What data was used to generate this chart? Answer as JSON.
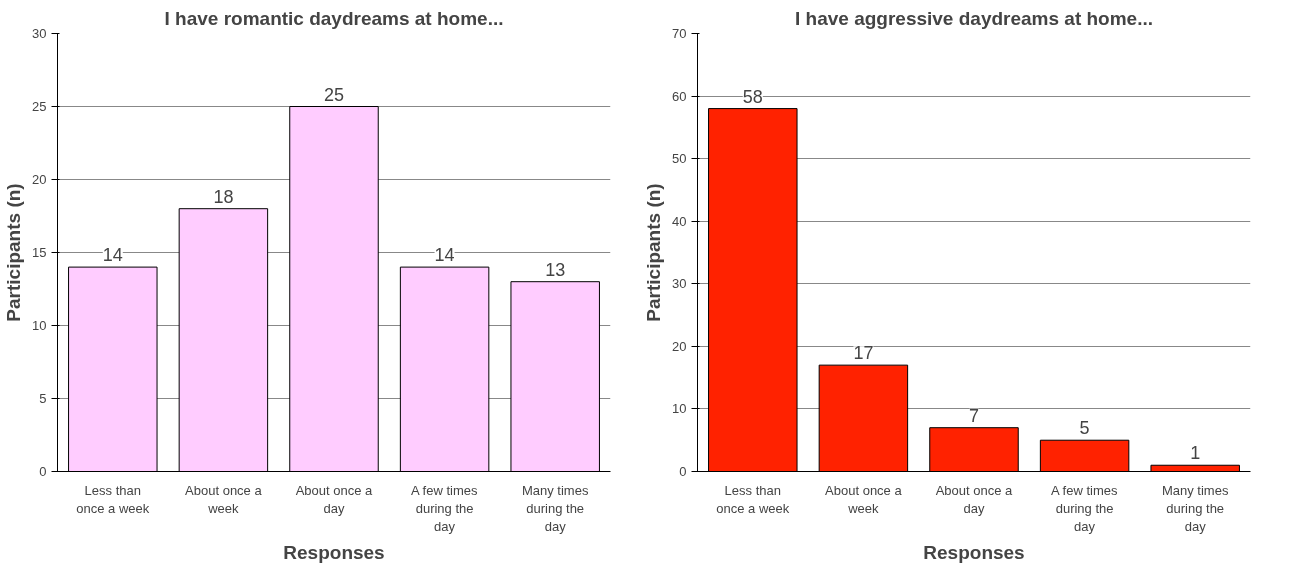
{
  "chart_data": [
    {
      "type": "bar",
      "title": "I have romantic daydreams at home...",
      "xlabel": "Responses",
      "ylabel": "Participants (n)",
      "categories": [
        "Less than once a week",
        "About once a week",
        "About once a day",
        "A few times during the day",
        "Many times during the day"
      ],
      "values": [
        14,
        18,
        25,
        14,
        13
      ],
      "color": "#ffccff",
      "ylim": [
        0,
        30
      ],
      "yticks": [
        0,
        5,
        10,
        15,
        20,
        25,
        30
      ],
      "grid": "y",
      "data_labels": true
    },
    {
      "type": "bar",
      "title": "I have aggressive daydreams at home...",
      "xlabel": "Responses",
      "ylabel": "Participants (n)",
      "categories": [
        "Less than once a week",
        "About once a week",
        "About once a day",
        "A few times during the day",
        "Many times during the day"
      ],
      "values": [
        58,
        17,
        7,
        5,
        1
      ],
      "color": "#ff2200",
      "ylim": [
        0,
        70
      ],
      "yticks": [
        0,
        10,
        20,
        30,
        40,
        50,
        60,
        70
      ],
      "grid": "y",
      "data_labels": true
    }
  ]
}
